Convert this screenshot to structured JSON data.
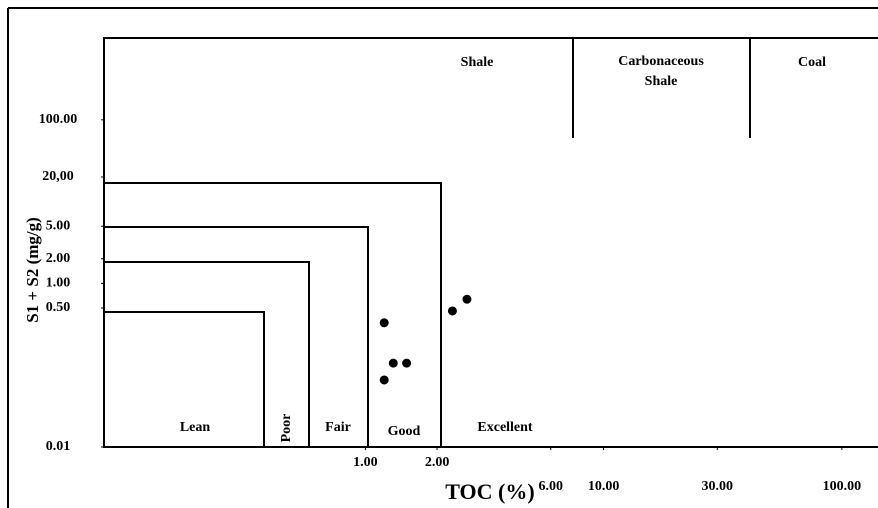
{
  "chart_data": {
    "type": "scatter",
    "xlabel": "TOC (%)",
    "ylabel": "S1 + S2 (mg/g)",
    "log_x": true,
    "log_y": true,
    "color": "#000000",
    "x": [
      1.2,
      1.31,
      1.49,
      1.2,
      2.32,
      2.67
    ],
    "values": [
      0.33,
      0.106,
      0.106,
      0.066,
      0.46,
      0.64
    ],
    "xlim": [
      0.08,
      130
    ],
    "ylim": [
      0.01,
      1000
    ],
    "xticks": [
      {
        "value": 1,
        "label": "1.00"
      },
      {
        "value": 2,
        "label": "2.00"
      },
      {
        "value": 6,
        "label": "6.00"
      },
      {
        "value": 10,
        "label": "10.00"
      },
      {
        "value": 30,
        "label": "30.00"
      },
      {
        "value": 100,
        "label": "100.00"
      }
    ],
    "yticks": [
      0.01,
      {
        "value": 0.5,
        "label": "0.50"
      },
      {
        "value": 1,
        "label": "1.00"
      },
      {
        "value": 2,
        "label": "2.00"
      },
      {
        "value": 5,
        "label": "5.00"
      },
      {
        "value": 20,
        "label": "20,00"
      },
      {
        "value": 100,
        "label": "100.00"
      }
    ],
    "regions": [
      "Lean",
      "Poor",
      "Fair",
      "Good",
      "Excellent",
      "Shale",
      "Carbonaceous Shale",
      "Coal"
    ]
  }
}
